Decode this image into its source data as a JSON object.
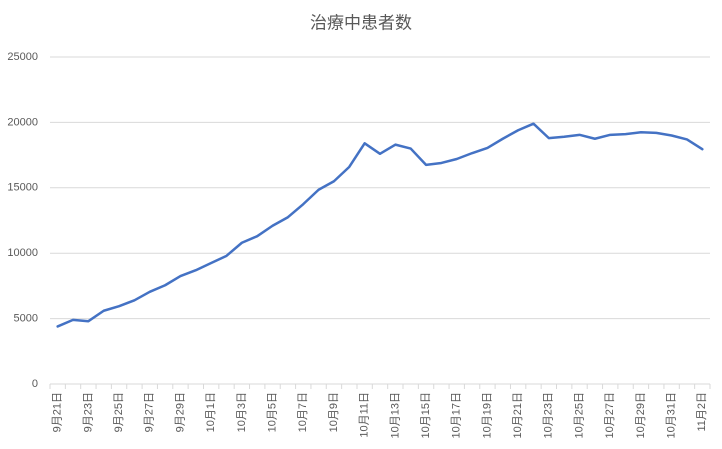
{
  "chart_data": {
    "type": "line",
    "title": "治療中患者数",
    "categories": [
      "9月21日",
      null,
      "9月23日",
      null,
      "9月25日",
      null,
      "9月27日",
      null,
      "9月29日",
      null,
      "10月1日",
      null,
      "10月3日",
      null,
      "10月5日",
      null,
      "10月7日",
      null,
      "10月9日",
      null,
      "10月11日",
      null,
      "10月13日",
      null,
      "10月15日",
      null,
      "10月17日",
      null,
      "10月19日",
      null,
      "10月21日",
      null,
      "10月23日",
      null,
      "10月25日",
      null,
      "10月27日",
      null,
      "10月29日",
      null,
      "10月31日",
      null,
      "11月2日"
    ],
    "values": [
      4400,
      4900,
      4800,
      5600,
      5950,
      6400,
      7050,
      7550,
      8250,
      8700,
      9250,
      9800,
      10800,
      11300,
      12100,
      12750,
      13750,
      14850,
      15500,
      16600,
      18400,
      17600,
      18300,
      18000,
      16750,
      16900,
      17200,
      17650,
      18050,
      18750,
      19400,
      19900,
      18800,
      18900,
      19050,
      18750,
      19050,
      19100,
      19250,
      19200,
      19000,
      18700,
      17950
    ],
    "color": "#4472c4",
    "ylim": [
      0,
      25000
    ],
    "yticks": [
      0,
      5000,
      10000,
      15000,
      20000,
      25000
    ],
    "grid": true
  }
}
